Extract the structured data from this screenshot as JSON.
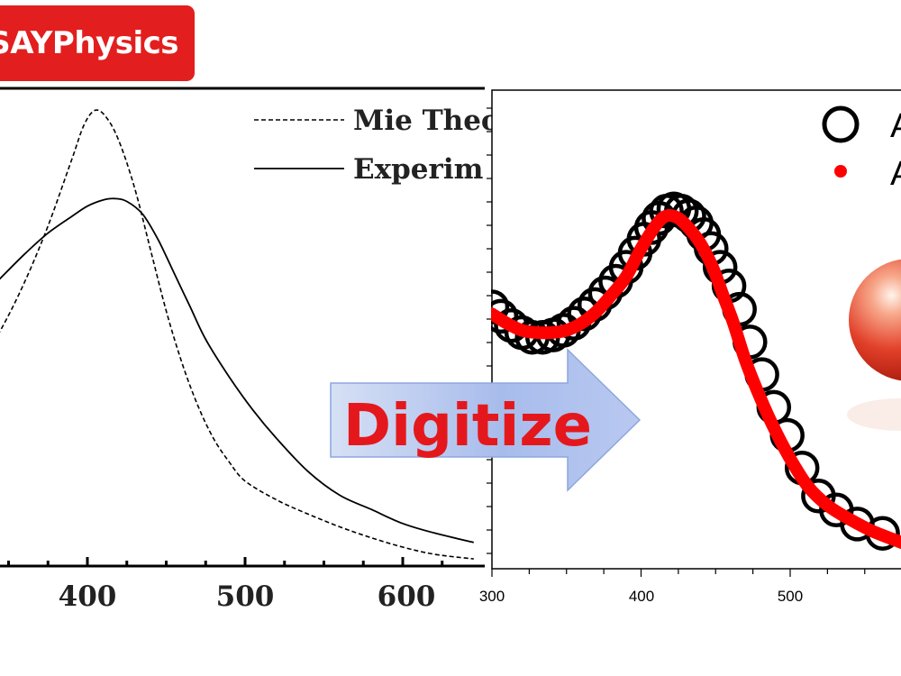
{
  "brand": {
    "label": "SAYPhysics",
    "color": "#e31e1e"
  },
  "arrow": {
    "label": "Digitize",
    "label_color": "#e4181c"
  },
  "chart_data": [
    {
      "type": "line",
      "title": "",
      "xlabel": "",
      "ylabel": "",
      "xlim": [
        315,
        645
      ],
      "ylim": [
        0,
        1.0
      ],
      "x_ticks": [
        400,
        500,
        600
      ],
      "tick_labels": [
        "400",
        "500",
        "600"
      ],
      "legend": {
        "placement": "top-right",
        "entries": [
          "Mie Theo",
          "Experim"
        ]
      },
      "series": [
        {
          "name": "Mie Theory",
          "style": "dashed",
          "x": [
            315,
            330,
            345,
            360,
            375,
            390,
            398,
            405,
            412,
            420,
            430,
            440,
            450,
            460,
            470,
            480,
            490,
            500,
            520,
            540,
            560,
            580,
            600,
            620,
            645
          ],
          "y": [
            0.35,
            0.42,
            0.5,
            0.6,
            0.72,
            0.86,
            0.935,
            0.965,
            0.95,
            0.9,
            0.8,
            0.67,
            0.54,
            0.43,
            0.34,
            0.27,
            0.22,
            0.18,
            0.14,
            0.11,
            0.083,
            0.06,
            0.04,
            0.025,
            0.015
          ]
        },
        {
          "name": "Experiment",
          "style": "solid",
          "x": [
            315,
            330,
            345,
            360,
            375,
            390,
            400,
            410,
            417,
            425,
            435,
            445,
            455,
            465,
            475,
            490,
            505,
            520,
            540,
            560,
            580,
            600,
            620,
            645
          ],
          "y": [
            0.52,
            0.56,
            0.61,
            0.66,
            0.705,
            0.74,
            0.762,
            0.775,
            0.778,
            0.772,
            0.745,
            0.69,
            0.62,
            0.55,
            0.48,
            0.4,
            0.33,
            0.27,
            0.2,
            0.15,
            0.12,
            0.09,
            0.07,
            0.05
          ]
        }
      ]
    },
    {
      "type": "scatter",
      "title": "",
      "xlabel": "",
      "ylabel": "",
      "xlim": [
        300,
        575
      ],
      "ylim": [
        0,
        1.0
      ],
      "x_ticks": [
        300,
        400,
        500
      ],
      "tick_labels": [
        "300",
        "400",
        "500"
      ],
      "legend": {
        "placement": "top-right",
        "entries": [
          "A",
          "A"
        ]
      },
      "series": [
        {
          "name": "A (digitized points)",
          "marker": "open-circle",
          "x": [
            300,
            306,
            313,
            320,
            327,
            334,
            341,
            348,
            355,
            362,
            369,
            376,
            383,
            390,
            396,
            402,
            407,
            412,
            417,
            422,
            427,
            432,
            437,
            442,
            447,
            453,
            459,
            466,
            473,
            481,
            489,
            498,
            508,
            519,
            531,
            545,
            562
          ],
          "y": [
            0.555,
            0.535,
            0.515,
            0.5,
            0.49,
            0.49,
            0.495,
            0.505,
            0.52,
            0.54,
            0.56,
            0.585,
            0.61,
            0.64,
            0.67,
            0.7,
            0.725,
            0.745,
            0.76,
            0.765,
            0.76,
            0.75,
            0.735,
            0.71,
            0.68,
            0.64,
            0.6,
            0.55,
            0.48,
            0.41,
            0.34,
            0.28,
            0.21,
            0.15,
            0.12,
            0.09,
            0.07
          ]
        },
        {
          "name": "A (fit)",
          "marker": "dot",
          "color": "#ff0000",
          "x": [
            300,
            310,
            320,
            330,
            340,
            350,
            360,
            370,
            380,
            390,
            400,
            410,
            417,
            425,
            433,
            440,
            448,
            455,
            462,
            470,
            480,
            490,
            500,
            512,
            525,
            540,
            555,
            575
          ],
          "y": [
            0.54,
            0.52,
            0.505,
            0.5,
            0.5,
            0.505,
            0.52,
            0.545,
            0.58,
            0.62,
            0.68,
            0.73,
            0.75,
            0.745,
            0.72,
            0.69,
            0.64,
            0.58,
            0.52,
            0.44,
            0.36,
            0.29,
            0.23,
            0.17,
            0.13,
            0.1,
            0.075,
            0.05
          ]
        }
      ]
    }
  ]
}
